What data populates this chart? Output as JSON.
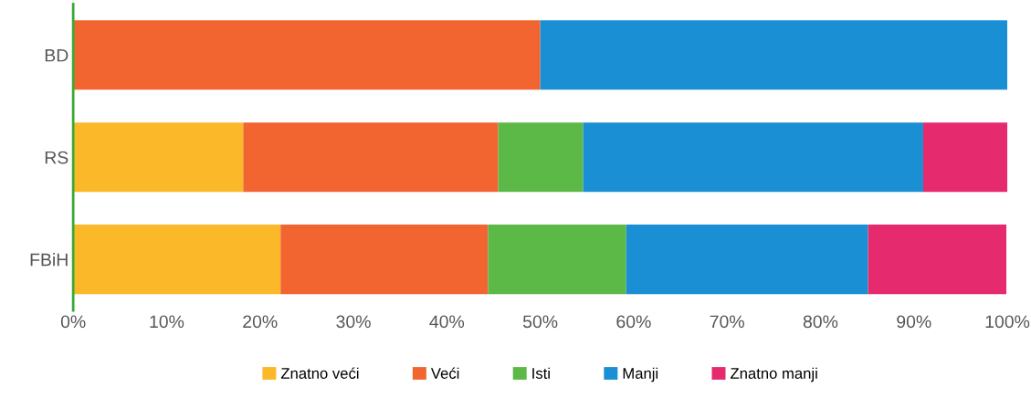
{
  "chart_data": {
    "type": "bar",
    "orientation": "horizontal",
    "stacked": true,
    "categories": [
      "BD",
      "RS",
      "FBiH"
    ],
    "series": [
      {
        "name": "Znatno veći",
        "color": "#fbb829",
        "values": [
          0,
          18.2,
          22.2
        ]
      },
      {
        "name": "Veći",
        "color": "#f26531",
        "values": [
          50,
          27.3,
          22.2
        ]
      },
      {
        "name": "Isti",
        "color": "#5cb947",
        "values": [
          0,
          9.1,
          14.8
        ]
      },
      {
        "name": "Manji",
        "color": "#1a8fd4",
        "values": [
          50,
          36.4,
          25.9
        ]
      },
      {
        "name": "Znatno manji",
        "color": "#e62a6e",
        "values": [
          0,
          9.1,
          14.8
        ]
      }
    ],
    "xlim": [
      0,
      100
    ],
    "xticks": [
      {
        "value": 0,
        "label": "0%"
      },
      {
        "value": 10,
        "label": "10%"
      },
      {
        "value": 20,
        "label": "20%"
      },
      {
        "value": 30,
        "label": "30%"
      },
      {
        "value": 40,
        "label": "40%"
      },
      {
        "value": 50,
        "label": "50%"
      },
      {
        "value": 60,
        "label": "60%"
      },
      {
        "value": 70,
        "label": "70%"
      },
      {
        "value": 80,
        "label": "80%"
      },
      {
        "value": 90,
        "label": "90%"
      },
      {
        "value": 100,
        "label": "100%"
      }
    ],
    "grid": false,
    "legend": "bottom"
  }
}
